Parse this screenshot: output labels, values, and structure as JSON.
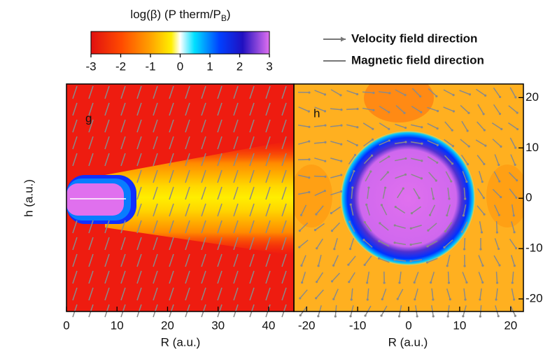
{
  "chart_data": {
    "type": "heatmap",
    "colorbar": {
      "title": [
        "log(β) (P therm/P",
        "B",
        ")"
      ],
      "lim": [
        -3,
        3
      ],
      "ticks": [
        -3,
        -2,
        -1,
        0,
        1,
        2,
        3
      ]
    },
    "legend": [
      "Velocity field direction",
      "Magnetic field direction"
    ],
    "panels": [
      {
        "label": "g",
        "xlabel": "R (a.u.)",
        "ylabel": "h (a.u.)",
        "xlim": [
          0,
          45
        ],
        "xticks": [
          0,
          10,
          20,
          30,
          40
        ],
        "ylim": [
          -22.5,
          22.7
        ]
      },
      {
        "label": "h",
        "xlabel": "R (a.u.)",
        "xlim": [
          -22.5,
          22.5
        ],
        "xticks": [
          -20,
          -10,
          0,
          10,
          20
        ],
        "ylim": [
          -22.5,
          22.7
        ],
        "yticks": [
          -20,
          -10,
          0,
          10,
          20
        ]
      }
    ]
  }
}
